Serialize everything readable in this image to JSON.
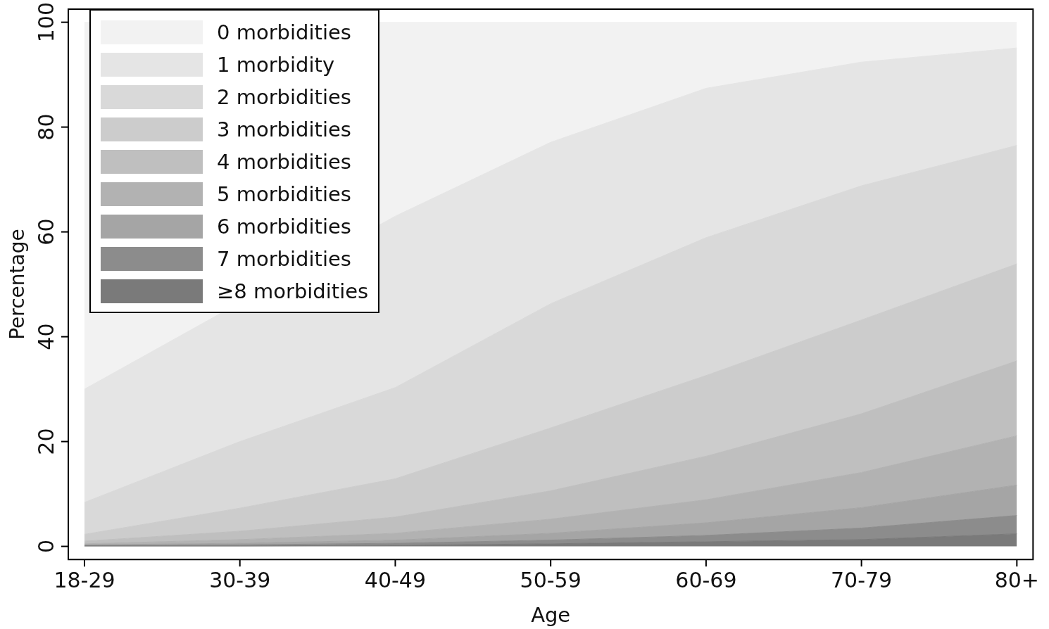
{
  "chart_data": {
    "type": "area",
    "stacked": true,
    "xlabel": "Age",
    "ylabel": "Percentage",
    "categories": [
      "18-29",
      "30-39",
      "40-49",
      "50-59",
      "60-69",
      "70-79",
      "80+"
    ],
    "series": [
      {
        "name": "≥8 morbidities",
        "color": "#7a7a7a",
        "values": [
          0.1,
          0.1,
          0.2,
          0.5,
          0.9,
          1.3,
          2.4
        ]
      },
      {
        "name": "7 morbidities",
        "color": "#8c8c8c",
        "values": [
          0.1,
          0.2,
          0.4,
          0.7,
          1.2,
          2.2,
          3.5
        ]
      },
      {
        "name": "6 morbidities",
        "color": "#a5a5a5",
        "values": [
          0.1,
          0.3,
          0.6,
          1.3,
          2.4,
          3.9,
          5.8
        ]
      },
      {
        "name": "5 morbidities",
        "color": "#b2b2b2",
        "values": [
          0.2,
          0.7,
          1.3,
          2.7,
          4.4,
          6.7,
          9.4
        ]
      },
      {
        "name": "4 morbidities",
        "color": "#bfbfbf",
        "values": [
          0.5,
          1.6,
          3.1,
          5.4,
          8.3,
          11.2,
          14.3
        ]
      },
      {
        "name": "3 morbidities",
        "color": "#cccccc",
        "values": [
          1.3,
          4.4,
          7.3,
          12.0,
          15.4,
          17.9,
          18.5
        ]
      },
      {
        "name": "2 morbidities",
        "color": "#d9d9d9",
        "values": [
          6.1,
          12.7,
          17.4,
          23.7,
          26.3,
          25.6,
          22.6
        ]
      },
      {
        "name": "1 morbidity",
        "color": "#e5e5e5",
        "values": [
          21.6,
          null,
          32.7,
          30.8,
          28.5,
          23.6,
          18.6
        ]
      },
      {
        "name": "0 morbidities",
        "color": "#f2f2f2",
        "values": [
          70.0,
          null,
          37.0,
          22.9,
          12.6,
          7.6,
          4.9
        ]
      }
    ],
    "ylim": [
      -2.5,
      102.5
    ],
    "yticks": [
      0,
      20,
      40,
      60,
      80,
      100
    ],
    "grid": false,
    "legend": "top left"
  }
}
